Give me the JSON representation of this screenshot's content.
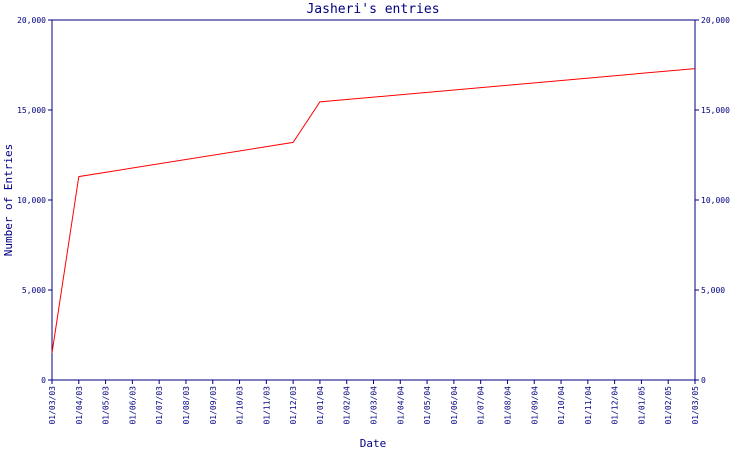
{
  "chart_data": {
    "type": "line",
    "title": "Jasheri's entries",
    "xlabel": "Date",
    "ylabel": "Number of Entries",
    "ylim": [
      0,
      20000
    ],
    "y_ticks": [
      0,
      5000,
      10000,
      15000,
      20000
    ],
    "y_tick_labels": [
      "0",
      "5,000",
      "10,000",
      "15,000",
      "20,000"
    ],
    "x_tick_labels": [
      "01/03/03",
      "01/04/03",
      "01/05/03",
      "01/06/03",
      "01/07/03",
      "01/08/03",
      "01/09/03",
      "01/10/03",
      "01/11/03",
      "01/12/03",
      "01/01/04",
      "01/02/04",
      "01/03/04",
      "01/04/04",
      "01/05/04",
      "01/06/04",
      "01/07/04",
      "01/08/04",
      "01/09/04",
      "01/10/04",
      "01/11/04",
      "01/12/04",
      "01/01/05",
      "01/02/05",
      "01/03/05"
    ],
    "grid": false,
    "legend": "none",
    "colors": {
      "axis": "#000080",
      "text": "#000080",
      "line": "#ff0000"
    },
    "series": [
      {
        "x": [
          "01/03/03",
          "01/04/03",
          "01/12/03",
          "01/01/04",
          "01/03/05"
        ],
        "values": [
          1500,
          11300,
          13200,
          15450,
          17300
        ]
      }
    ]
  }
}
